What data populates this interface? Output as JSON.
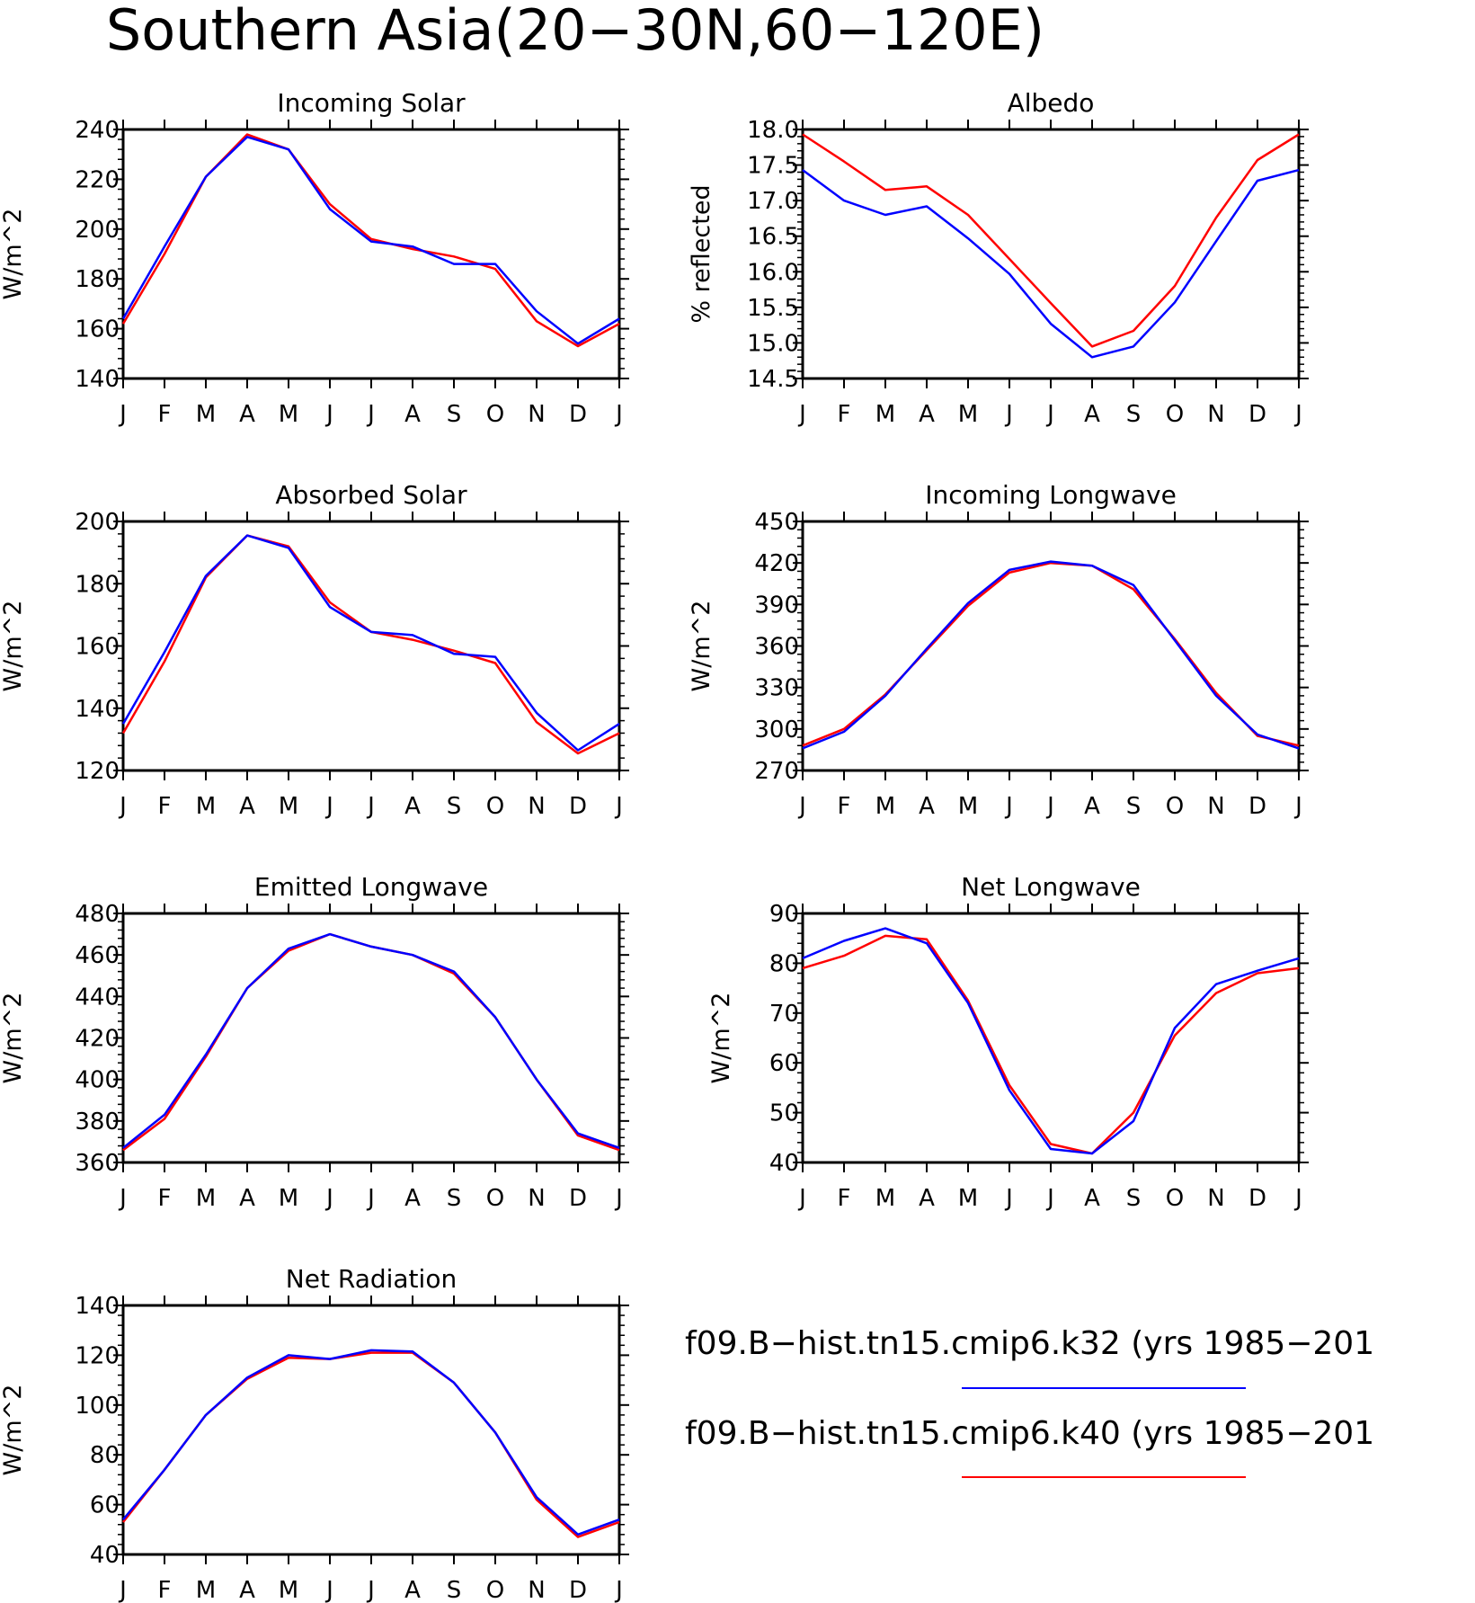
{
  "figure_title": "Southern Asia(20−30N,60−120E)",
  "colors": {
    "k32": "#0000ff",
    "k40": "#ff0000",
    "axes": "#000000"
  },
  "legend": [
    {
      "label": "f09.B−hist.tn15.cmip6.k32 (yrs 1985−201",
      "color": "#0000ff"
    },
    {
      "label": "f09.B−hist.tn15.cmip6.k40 (yrs 1985−201",
      "color": "#ff0000"
    }
  ],
  "chart_data": [
    {
      "type": "line",
      "title": "Incoming Solar",
      "ylabel": "W/m^2",
      "ylim": [
        140,
        240
      ],
      "yticks": [
        140,
        160,
        180,
        200,
        220,
        240
      ],
      "ytick_labels": [
        "140",
        "160",
        "180",
        "200",
        "220",
        "240"
      ],
      "categories": [
        "J",
        "F",
        "M",
        "A",
        "M",
        "J",
        "J",
        "A",
        "S",
        "O",
        "N",
        "D",
        "J"
      ],
      "series": [
        {
          "name": "f09.B−hist.tn15.cmip6.k32 (yrs 1985−201",
          "color": "#0000ff",
          "values": [
            164,
            193,
            221,
            237,
            232,
            208,
            195,
            193,
            186,
            186,
            167,
            154,
            164
          ]
        },
        {
          "name": "f09.B−hist.tn15.cmip6.k40 (yrs 1985−201",
          "color": "#ff0000",
          "values": [
            162,
            190,
            221,
            238,
            232,
            210,
            196,
            192,
            189,
            184,
            163,
            153,
            162
          ]
        }
      ]
    },
    {
      "type": "line",
      "title": "Albedo",
      "ylabel": "% reflected",
      "ylim": [
        14.5,
        18.0
      ],
      "yticks": [
        14.5,
        15.0,
        15.5,
        16.0,
        16.5,
        17.0,
        17.5,
        18.0
      ],
      "ytick_labels": [
        "14.5",
        "15.0",
        "15.5",
        "16.0",
        "16.5",
        "17.0",
        "17.5",
        "18.0"
      ],
      "categories": [
        "J",
        "F",
        "M",
        "A",
        "M",
        "J",
        "J",
        "A",
        "S",
        "O",
        "N",
        "D",
        "J"
      ],
      "series": [
        {
          "name": "f09.B−hist.tn15.cmip6.k32 (yrs 1985−201",
          "color": "#0000ff",
          "values": [
            17.43,
            17.0,
            16.8,
            16.92,
            16.47,
            15.97,
            15.27,
            14.8,
            14.95,
            15.57,
            16.43,
            17.28,
            17.43
          ]
        },
        {
          "name": "f09.B−hist.tn15.cmip6.k40 (yrs 1985−201",
          "color": "#ff0000",
          "values": [
            17.93,
            17.55,
            17.15,
            17.2,
            16.8,
            16.18,
            15.56,
            14.95,
            15.17,
            15.8,
            16.76,
            17.57,
            17.93
          ]
        }
      ]
    },
    {
      "type": "line",
      "title": "Absorbed Solar",
      "ylabel": "W/m^2",
      "ylim": [
        120,
        200
      ],
      "yticks": [
        120,
        140,
        160,
        180,
        200
      ],
      "ytick_labels": [
        "120",
        "140",
        "160",
        "180",
        "200"
      ],
      "categories": [
        "J",
        "F",
        "M",
        "A",
        "M",
        "J",
        "J",
        "A",
        "S",
        "O",
        "N",
        "D",
        "J"
      ],
      "series": [
        {
          "name": "f09.B−hist.tn15.cmip6.k32 (yrs 1985−201",
          "color": "#0000ff",
          "values": [
            135,
            158,
            182.5,
            195.5,
            191.5,
            172.5,
            164.5,
            163.5,
            157.5,
            156.5,
            138.5,
            126.5,
            135
          ]
        },
        {
          "name": "f09.B−hist.tn15.cmip6.k40 (yrs 1985−201",
          "color": "#ff0000",
          "values": [
            132,
            155,
            182,
            195.5,
            192,
            174,
            164.5,
            162,
            158.5,
            154.5,
            135.5,
            125.5,
            132
          ]
        }
      ]
    },
    {
      "type": "line",
      "title": "Incoming Longwave",
      "ylabel": "W/m^2",
      "ylim": [
        270,
        450
      ],
      "yticks": [
        270,
        300,
        330,
        360,
        390,
        420,
        450
      ],
      "ytick_labels": [
        "270",
        "300",
        "330",
        "360",
        "390",
        "420",
        "450"
      ],
      "categories": [
        "J",
        "F",
        "M",
        "A",
        "M",
        "J",
        "J",
        "A",
        "S",
        "O",
        "N",
        "D",
        "J"
      ],
      "series": [
        {
          "name": "f09.B−hist.tn15.cmip6.k32 (yrs 1985−201",
          "color": "#0000ff",
          "values": [
            286,
            298,
            324,
            358,
            391,
            415,
            421,
            418,
            404,
            364,
            324,
            296,
            286
          ]
        },
        {
          "name": "f09.B−hist.tn15.cmip6.k40 (yrs 1985−201",
          "color": "#ff0000",
          "values": [
            288,
            300,
            325,
            357,
            389,
            413,
            420,
            418,
            401,
            365,
            326,
            295,
            288
          ]
        }
      ]
    },
    {
      "type": "line",
      "title": "Emitted Longwave",
      "ylabel": "W/m^2",
      "ylim": [
        360,
        480
      ],
      "yticks": [
        360,
        380,
        400,
        420,
        440,
        460,
        480
      ],
      "ytick_labels": [
        "360",
        "380",
        "400",
        "420",
        "440",
        "460",
        "480"
      ],
      "categories": [
        "J",
        "F",
        "M",
        "A",
        "M",
        "J",
        "J",
        "A",
        "S",
        "O",
        "N",
        "D",
        "J"
      ],
      "series": [
        {
          "name": "f09.B−hist.tn15.cmip6.k32 (yrs 1985−201",
          "color": "#0000ff",
          "values": [
            367,
            383,
            412,
            444,
            463,
            470,
            464,
            460,
            452,
            430,
            400,
            374,
            367
          ]
        },
        {
          "name": "f09.B−hist.tn15.cmip6.k40 (yrs 1985−201",
          "color": "#ff0000",
          "values": [
            366,
            381,
            411,
            444,
            462,
            470,
            464,
            460,
            451,
            430,
            400,
            373,
            366
          ]
        }
      ]
    },
    {
      "type": "line",
      "title": "Net Longwave",
      "ylabel": "W/m^2",
      "ylim": [
        40,
        90
      ],
      "yticks": [
        40,
        50,
        60,
        70,
        80,
        90
      ],
      "ytick_labels": [
        "40",
        "50",
        "60",
        "70",
        "80",
        "90"
      ],
      "categories": [
        "J",
        "F",
        "M",
        "A",
        "M",
        "J",
        "J",
        "A",
        "S",
        "O",
        "N",
        "D",
        "J"
      ],
      "series": [
        {
          "name": "f09.B−hist.tn15.cmip6.k32 (yrs 1985−201",
          "color": "#0000ff",
          "values": [
            81,
            84.5,
            87,
            84,
            72,
            54.5,
            42.7,
            41.8,
            48.3,
            67,
            75.8,
            78.5,
            81
          ]
        },
        {
          "name": "f09.B−hist.tn15.cmip6.k40 (yrs 1985−201",
          "color": "#ff0000",
          "values": [
            79,
            81.5,
            85.5,
            84.8,
            72.5,
            55.5,
            43.7,
            41.8,
            50,
            65.5,
            74,
            78,
            79
          ]
        }
      ]
    },
    {
      "type": "line",
      "title": "Net Radiation",
      "ylabel": "W/m^2",
      "ylim": [
        40,
        140
      ],
      "yticks": [
        40,
        60,
        80,
        100,
        120,
        140
      ],
      "ytick_labels": [
        "40",
        "60",
        "80",
        "100",
        "120",
        "140"
      ],
      "categories": [
        "J",
        "F",
        "M",
        "A",
        "M",
        "J",
        "J",
        "A",
        "S",
        "O",
        "N",
        "D",
        "J"
      ],
      "series": [
        {
          "name": "f09.B−hist.tn15.cmip6.k32 (yrs 1985−201",
          "color": "#0000ff",
          "values": [
            54,
            74,
            96,
            111,
            120,
            118.5,
            122,
            121.5,
            109,
            89,
            63,
            48,
            54
          ]
        },
        {
          "name": "f09.B−hist.tn15.cmip6.k40 (yrs 1985−201",
          "color": "#ff0000",
          "values": [
            53,
            74,
            96,
            110.5,
            119,
            118.5,
            121,
            121,
            109,
            89,
            62,
            47,
            53
          ]
        }
      ]
    }
  ]
}
